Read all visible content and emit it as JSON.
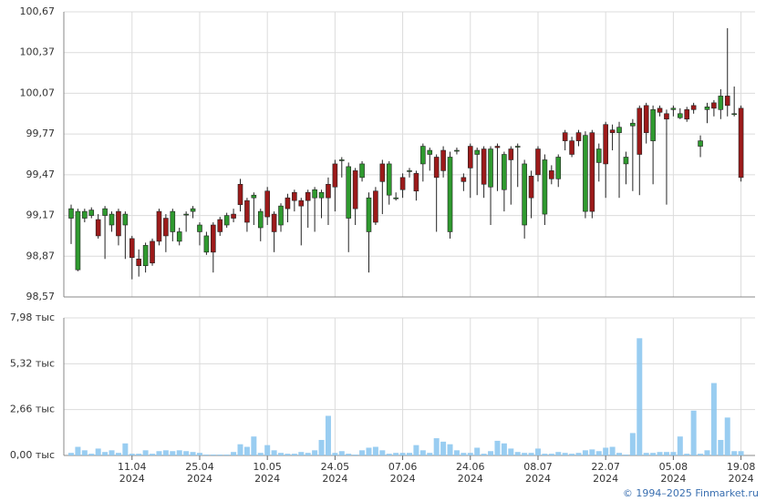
{
  "chart_data": {
    "type": "candlestick",
    "categories": [
      null,
      null,
      null,
      null,
      null,
      null,
      null,
      null,
      null,
      "11.04",
      null,
      null,
      null,
      null,
      null,
      null,
      null,
      null,
      null,
      "25.04",
      null,
      null,
      null,
      null,
      null,
      null,
      null,
      null,
      null,
      "10.05",
      null,
      null,
      null,
      null,
      null,
      null,
      null,
      null,
      null,
      "24.05",
      null,
      null,
      null,
      null,
      null,
      null,
      null,
      null,
      null,
      "07.06",
      null,
      null,
      null,
      null,
      null,
      null,
      null,
      null,
      null,
      "24.06",
      null,
      null,
      null,
      null,
      null,
      null,
      null,
      null,
      null,
      "08.07",
      null,
      null,
      null,
      null,
      null,
      null,
      null,
      null,
      null,
      "22.07",
      null,
      null,
      null,
      null,
      null,
      null,
      null,
      null,
      null,
      "05.08",
      null,
      null,
      null,
      null,
      null,
      null,
      null,
      null,
      null,
      "19.08"
    ],
    "x_tick_year": "2024",
    "open": [
      99.15,
      98.77,
      99.15,
      99.17,
      99.14,
      99.17,
      99.1,
      99.2,
      99.1,
      99.0,
      98.85,
      98.8,
      98.98,
      99.2,
      99.15,
      99.05,
      98.98,
      99.18,
      99.2,
      99.05,
      98.9,
      99.1,
      99.14,
      99.1,
      99.18,
      99.4,
      99.28,
      99.3,
      99.08,
      99.35,
      99.18,
      99.1,
      99.3,
      99.34,
      99.28,
      99.34,
      99.3,
      99.3,
      99.4,
      99.55,
      99.58,
      99.15,
      99.5,
      99.45,
      99.05,
      99.35,
      99.55,
      99.32,
      99.3,
      99.45,
      99.5,
      99.48,
      99.55,
      99.62,
      99.6,
      99.65,
      99.05,
      99.65,
      99.45,
      99.68,
      99.62,
      99.66,
      99.38,
      99.68,
      99.36,
      99.66,
      99.68,
      99.1,
      99.46,
      99.66,
      99.18,
      99.5,
      99.44,
      99.78,
      99.72,
      99.78,
      99.2,
      99.78,
      99.56,
      99.84,
      99.8,
      99.78,
      99.55,
      99.83,
      99.96,
      99.98,
      99.72,
      99.96,
      99.92,
      99.95,
      99.89,
      99.95,
      99.98,
      99.68,
      99.95,
      100.0,
      99.95,
      100.05,
      99.92,
      99.96
    ],
    "high": [
      99.25,
      99.22,
      99.22,
      99.23,
      99.18,
      99.24,
      99.2,
      99.22,
      99.2,
      99.02,
      98.92,
      98.97,
      99.0,
      99.22,
      99.18,
      99.22,
      99.08,
      99.2,
      99.24,
      99.12,
      99.05,
      99.12,
      99.16,
      99.19,
      99.22,
      99.44,
      99.3,
      99.34,
      99.22,
      99.38,
      99.2,
      99.26,
      99.33,
      99.36,
      99.3,
      99.36,
      99.38,
      99.36,
      99.45,
      99.58,
      99.6,
      99.56,
      99.52,
      99.57,
      99.34,
      99.38,
      99.58,
      99.57,
      99.34,
      99.48,
      99.52,
      99.5,
      99.7,
      99.67,
      99.62,
      99.68,
      99.64,
      99.67,
      99.48,
      99.7,
      99.67,
      99.68,
      99.68,
      99.7,
      99.64,
      99.68,
      99.7,
      99.58,
      99.5,
      99.68,
      99.62,
      99.54,
      99.62,
      99.8,
      99.75,
      99.8,
      99.79,
      99.8,
      99.7,
      99.86,
      99.84,
      99.86,
      99.64,
      99.88,
      99.98,
      100.0,
      99.98,
      99.98,
      99.95,
      99.98,
      99.96,
      99.97,
      100.0,
      99.76,
      100.0,
      100.02,
      100.1,
      100.55,
      100.12,
      99.98
    ],
    "low": [
      98.96,
      98.76,
      99.12,
      99.15,
      99.0,
      98.85,
      99.05,
      98.95,
      98.85,
      98.7,
      98.72,
      98.75,
      98.8,
      98.95,
      98.9,
      98.98,
      98.95,
      99.05,
      99.15,
      98.95,
      98.88,
      98.75,
      99.02,
      99.08,
      99.12,
      99.2,
      99.05,
      99.1,
      98.98,
      99.1,
      98.9,
      99.05,
      99.12,
      99.2,
      98.95,
      99.08,
      99.05,
      99.15,
      99.1,
      99.2,
      99.45,
      98.9,
      99.1,
      99.42,
      98.75,
      99.1,
      99.18,
      99.25,
      99.28,
      99.3,
      99.45,
      99.28,
      99.42,
      99.5,
      99.05,
      99.45,
      99.0,
      99.62,
      99.35,
      99.3,
      99.32,
      99.3,
      99.1,
      99.35,
      99.2,
      99.25,
      99.38,
      99.0,
      99.15,
      99.42,
      99.1,
      99.4,
      99.38,
      99.65,
      99.6,
      99.68,
      99.15,
      99.15,
      99.42,
      99.3,
      99.65,
      99.3,
      99.4,
      99.35,
      99.32,
      99.7,
      99.4,
      99.9,
      99.25,
      99.9,
      99.88,
      99.86,
      99.92,
      99.6,
      99.85,
      99.9,
      99.88,
      99.9,
      99.9,
      99.42
    ],
    "close": [
      99.22,
      99.2,
      99.2,
      99.21,
      99.02,
      99.22,
      99.18,
      99.02,
      99.18,
      98.86,
      98.8,
      98.95,
      98.82,
      98.98,
      99.02,
      99.2,
      99.05,
      99.18,
      99.22,
      99.1,
      99.02,
      98.9,
      99.05,
      99.17,
      99.15,
      99.25,
      99.12,
      99.32,
      99.2,
      99.16,
      99.05,
      99.24,
      99.22,
      99.28,
      99.24,
      99.28,
      99.36,
      99.34,
      99.3,
      99.38,
      99.58,
      99.53,
      99.22,
      99.55,
      99.3,
      99.12,
      99.42,
      99.55,
      99.3,
      99.36,
      99.5,
      99.35,
      99.68,
      99.65,
      99.45,
      99.5,
      99.6,
      99.65,
      99.42,
      99.52,
      99.65,
      99.4,
      99.66,
      99.67,
      99.62,
      99.58,
      99.68,
      99.55,
      99.3,
      99.47,
      99.58,
      99.44,
      99.6,
      99.72,
      99.62,
      99.72,
      99.76,
      99.2,
      99.66,
      99.55,
      99.78,
      99.82,
      99.6,
      99.85,
      99.62,
      99.78,
      99.95,
      99.93,
      99.88,
      99.96,
      99.92,
      99.88,
      99.95,
      99.72,
      99.97,
      99.96,
      100.05,
      99.98,
      99.92,
      99.45
    ],
    "up_color": "#2f9a2f",
    "down_color": "#9c1a1a",
    "ylim": [
      98.57,
      100.67
    ],
    "yticks": [
      {
        "value": 98.57,
        "label": "98,57"
      },
      {
        "value": 98.87,
        "label": "98,87"
      },
      {
        "value": 99.17,
        "label": "99,17"
      },
      {
        "value": 99.47,
        "label": "99,47"
      },
      {
        "value": 99.77,
        "label": "99,77"
      },
      {
        "value": 100.07,
        "label": "100,07"
      },
      {
        "value": 100.37,
        "label": "100,37"
      },
      {
        "value": 100.67,
        "label": "100,67"
      }
    ],
    "volume": [
      0.15,
      0.5,
      0.3,
      0.1,
      0.4,
      0.2,
      0.3,
      0.15,
      0.7,
      0.1,
      0.1,
      0.3,
      0.1,
      0.25,
      0.3,
      0.25,
      0.3,
      0.25,
      0.2,
      0.15,
      0.05,
      0.05,
      0.05,
      0.05,
      0.2,
      0.65,
      0.5,
      1.1,
      0.15,
      0.6,
      0.3,
      0.15,
      0.1,
      0.1,
      0.2,
      0.15,
      0.3,
      0.9,
      2.3,
      0.15,
      0.25,
      0.1,
      0.05,
      0.3,
      0.45,
      0.5,
      0.3,
      0.1,
      0.15,
      0.15,
      0.15,
      0.6,
      0.3,
      0.15,
      1.0,
      0.8,
      0.65,
      0.3,
      0.15,
      0.15,
      0.45,
      0.1,
      0.25,
      0.85,
      0.7,
      0.4,
      0.2,
      0.15,
      0.15,
      0.4,
      0.1,
      0.1,
      0.2,
      0.15,
      0.1,
      0.15,
      0.3,
      0.35,
      0.25,
      0.45,
      0.5,
      0.15,
      0.05,
      1.3,
      6.8,
      0.15,
      0.15,
      0.2,
      0.2,
      0.2,
      1.1,
      0.1,
      2.6,
      0.1,
      0.3,
      4.2,
      0.9,
      2.2,
      0.25,
      0.25
    ],
    "volume_color": "#8ec8f0",
    "y2lim": [
      0,
      7.98
    ],
    "y2ticks": [
      {
        "value": 0,
        "label": "0,00 тыс"
      },
      {
        "value": 2.66,
        "label": "2,66 тыс"
      },
      {
        "value": 5.32,
        "label": "5,32 тыс"
      },
      {
        "value": 7.98,
        "label": "7,98 тыс"
      }
    ],
    "grid": true,
    "copyright": "© 1994–2025 Finmarket.ru"
  }
}
